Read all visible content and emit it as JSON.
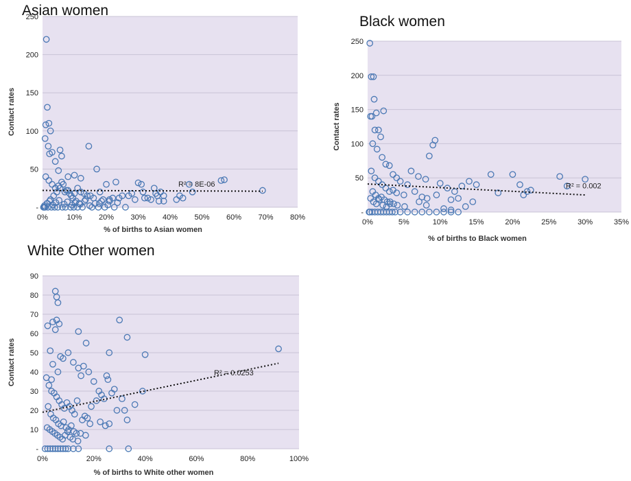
{
  "chart_data": [
    {
      "type": "scatter",
      "title": "Asian women",
      "xlabel": "% of births to Asian women",
      "ylabel": "Contact rates",
      "xlim": [
        0,
        80
      ],
      "ylim": [
        0,
        250
      ],
      "x_ticks": [
        "0%",
        "10%",
        "20%",
        "30%",
        "40%",
        "50%",
        "60%",
        "70%",
        "80%"
      ],
      "y_ticks": [
        "-",
        "50",
        "100",
        "150",
        "200",
        "250"
      ],
      "grid": true,
      "trendline": {
        "r2_label": "R² = 8E-06",
        "y_start": 22,
        "y_end": 21
      },
      "marker_color": "#4a78b4",
      "plot_bg": "#e7e1f0",
      "x": [
        1.2,
        1.5,
        2.0,
        1.0,
        0.8,
        2.5,
        1.8,
        3.0,
        2.2,
        4.0,
        5.5,
        6.0,
        5.0,
        8.0,
        10.0,
        12.0,
        14.5,
        17.0,
        20.0,
        23.0,
        30.0,
        31.0,
        35.0,
        37.0,
        43.0,
        46.0,
        47.0,
        56.0,
        57.0,
        69.0,
        1.0,
        2.0,
        3.0,
        4.0,
        5.0,
        6.0,
        7.0,
        8.0,
        9.0,
        10.0,
        11.0,
        12.0,
        13.0,
        15.0,
        16.0,
        18.0,
        19.0,
        21.0,
        22.0,
        25.0,
        28.0,
        32.0,
        34.0,
        36.0,
        38.0,
        0.5,
        1.5,
        2.5,
        3.5,
        4.5,
        5.5,
        6.5,
        7.5,
        8.5,
        9.5,
        10.5,
        11.5,
        13.5,
        14.0,
        16.5,
        18.5,
        21.0,
        24.0,
        27.0,
        29.0,
        33.0,
        36.5,
        38.0,
        42.0,
        44.0,
        0.3,
        0.8,
        1.7,
        2.8,
        3.8,
        4.8,
        6.2,
        7.2,
        8.8,
        9.8,
        11.0,
        12.5,
        15.5,
        17.5,
        19.5,
        22.5,
        26.0,
        0.6,
        1.4,
        2.2,
        3.2,
        4.2,
        5.2,
        6.8,
        7.8,
        9.2,
        10.2,
        11.8,
        13.2,
        14.8,
        17.8,
        20.5,
        23.5,
        31.5,
        35.5
      ],
      "y": [
        220,
        131,
        110,
        108,
        90,
        100,
        80,
        72,
        70,
        60,
        75,
        67,
        48,
        40,
        42,
        38,
        80,
        50,
        30,
        33,
        32,
        30,
        25,
        20,
        15,
        30,
        20,
        35,
        36,
        22,
        40,
        35,
        30,
        25,
        28,
        33,
        20,
        22,
        15,
        18,
        25,
        20,
        18,
        15,
        12,
        20,
        10,
        8,
        12,
        15,
        18,
        12,
        10,
        15,
        8,
        0,
        5,
        10,
        15,
        20,
        25,
        30,
        22,
        18,
        12,
        8,
        5,
        10,
        15,
        5,
        8,
        10,
        12,
        15,
        10,
        12,
        8,
        15,
        10,
        12,
        0,
        0,
        0,
        0,
        0,
        0,
        0,
        0,
        0,
        0,
        0,
        0,
        0,
        0,
        0,
        0,
        0,
        2,
        5,
        8,
        3,
        6,
        9,
        4,
        7,
        3,
        6,
        4,
        8,
        2,
        5,
        3,
        6,
        20,
        18
      ]
    },
    {
      "type": "scatter",
      "title": "Black women",
      "xlabel": "% of births to Black  women",
      "ylabel": "Contact rates",
      "xlim": [
        0,
        35
      ],
      "ylim": [
        0,
        250
      ],
      "x_ticks": [
        "0%",
        "5%",
        "10%",
        "15%",
        "20%",
        "25%",
        "30%",
        "35%"
      ],
      "y_ticks": [
        "-",
        "50",
        "100",
        "150",
        "200",
        "250"
      ],
      "grid": true,
      "trendline": {
        "r2_label": "R² = 0.002",
        "y_start": 41,
        "y_end": 25
      },
      "marker_color": "#4a78b4",
      "plot_bg": "#e7e1f0",
      "x": [
        0.3,
        0.5,
        0.8,
        0.4,
        0.6,
        0.9,
        1.2,
        1.0,
        1.5,
        2.2,
        1.8,
        0.7,
        1.3,
        2.0,
        2.5,
        3.0,
        3.5,
        4.0,
        4.5,
        5.5,
        6.0,
        7.0,
        8.0,
        8.5,
        9.0,
        9.3,
        10.0,
        11.0,
        12.0,
        13.0,
        14.0,
        15.0,
        17.0,
        18.0,
        20.0,
        21.0,
        22.0,
        26.5,
        27.5,
        30.0,
        0.5,
        1.0,
        1.5,
        2.0,
        2.5,
        3.0,
        3.5,
        4.0,
        5.0,
        6.5,
        7.5,
        8.2,
        9.5,
        11.5,
        12.5,
        14.5,
        21.5,
        22.5,
        0.4,
        0.8,
        1.2,
        1.6,
        2.1,
        2.6,
        3.1,
        3.6,
        4.1,
        5.1,
        7.1,
        8.1,
        10.5,
        11.5,
        13.5,
        0.2,
        0.6,
        1.0,
        1.4,
        1.8,
        2.2,
        2.6,
        3.0,
        3.4,
        3.8,
        4.5,
        5.5,
        6.5,
        7.5,
        8.5,
        9.5,
        10.5,
        11.5,
        12.5,
        0.3,
        0.7,
        1.1,
        1.5,
        1.9,
        2.3,
        2.7,
        3.1
      ],
      "y": [
        247,
        198,
        198,
        140,
        140,
        165,
        145,
        120,
        120,
        148,
        110,
        100,
        92,
        80,
        70,
        68,
        55,
        50,
        45,
        40,
        60,
        52,
        48,
        82,
        98,
        105,
        42,
        35,
        30,
        38,
        45,
        40,
        55,
        28,
        55,
        40,
        30,
        52,
        38,
        48,
        60,
        50,
        45,
        40,
        35,
        30,
        32,
        28,
        25,
        30,
        22,
        20,
        25,
        18,
        20,
        15,
        25,
        32,
        20,
        15,
        12,
        18,
        10,
        8,
        15,
        12,
        10,
        8,
        15,
        10,
        5,
        3,
        8,
        0,
        0,
        0,
        0,
        0,
        0,
        0,
        0,
        0,
        0,
        0,
        0,
        0,
        0,
        0,
        0,
        0,
        0,
        0,
        0,
        30,
        25,
        20,
        22,
        18,
        15,
        12
      ]
    },
    {
      "type": "scatter",
      "title": "White Other women",
      "xlabel": "% of births to White other women",
      "ylabel": "Contact rates",
      "xlim": [
        0,
        100
      ],
      "ylim": [
        0,
        90
      ],
      "x_ticks": [
        "0%",
        "20%",
        "40%",
        "60%",
        "80%",
        "100%"
      ],
      "y_ticks": [
        "-",
        "10",
        "20",
        "30",
        "40",
        "50",
        "60",
        "70",
        "80",
        "90"
      ],
      "grid": true,
      "trendline": {
        "r2_label": "R² = 0.0253",
        "y_start": 19,
        "y_end": 44.5
      },
      "marker_color": "#4a78b4",
      "plot_bg": "#e7e1f0",
      "x": [
        5.0,
        5.5,
        6.0,
        5.5,
        5.0,
        4.0,
        6.5,
        3.5,
        7.0,
        14.0,
        17.0,
        30.0,
        33.0,
        40.0,
        39.0,
        26.0,
        25.0,
        25.5,
        16.0,
        2.0,
        3.0,
        4.0,
        6.0,
        8.0,
        10.0,
        12.0,
        14.0,
        15.0,
        18.0,
        20.0,
        22.0,
        27.0,
        28.0,
        31.0,
        32.0,
        36.0,
        92.0,
        1.5,
        2.5,
        3.5,
        4.5,
        5.5,
        6.5,
        7.5,
        8.5,
        9.5,
        10.5,
        11.5,
        12.5,
        13.5,
        16.5,
        19.0,
        21.0,
        23.0,
        24.0,
        29.0,
        2.2,
        3.2,
        4.2,
        5.2,
        6.2,
        7.2,
        8.2,
        9.2,
        10.2,
        11.2,
        12.2,
        13.2,
        15.5,
        17.5,
        18.5,
        22.5,
        24.5,
        1.8,
        2.8,
        3.8,
        4.8,
        5.8,
        6.8,
        7.8,
        8.8,
        9.8,
        10.8,
        11.8,
        13.8,
        14.8,
        16.8,
        26.0,
        33.0,
        1.0,
        2.0,
        3.0,
        4.0,
        5.0,
        6.0,
        7.0,
        8.0,
        9.0,
        10.0,
        12.0,
        14.0,
        26.0,
        33.5
      ],
      "y": [
        82,
        79,
        76,
        67,
        62,
        66,
        65,
        36,
        48,
        61,
        55,
        67,
        58,
        49,
        30,
        50,
        38,
        36,
        43,
        64,
        51,
        44,
        40,
        47,
        50,
        45,
        42,
        38,
        40,
        35,
        30,
        29,
        31,
        26,
        20,
        23,
        52,
        37,
        33,
        30,
        29,
        27,
        25,
        23,
        21,
        24,
        22,
        20,
        18,
        25,
        17,
        22,
        25,
        28,
        26,
        20,
        22,
        18,
        16,
        15,
        13,
        12,
        14,
        11,
        10,
        12,
        9,
        8,
        15,
        16,
        13,
        14,
        12,
        11,
        10,
        9,
        8,
        7,
        6,
        5,
        7,
        9,
        6,
        5,
        4,
        8,
        7,
        13,
        15,
        0,
        0,
        0,
        0,
        0,
        0,
        0,
        0,
        0,
        0,
        0,
        0,
        0,
        0
      ]
    }
  ]
}
